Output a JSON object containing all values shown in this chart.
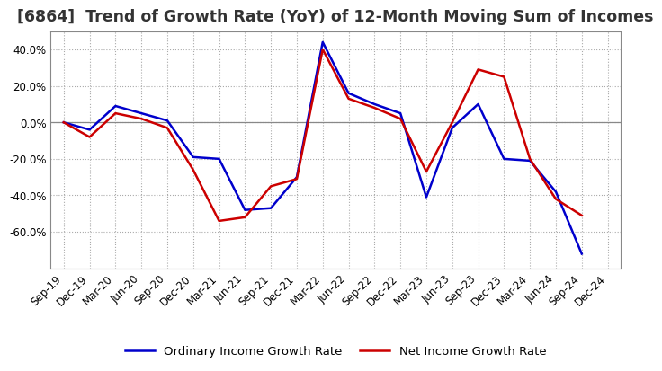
{
  "title": "[6864]  Trend of Growth Rate (YoY) of 12-Month Moving Sum of Incomes",
  "x_labels": [
    "Sep-19",
    "Dec-19",
    "Mar-20",
    "Jun-20",
    "Sep-20",
    "Dec-20",
    "Mar-21",
    "Jun-21",
    "Sep-21",
    "Dec-21",
    "Mar-22",
    "Jun-22",
    "Sep-22",
    "Dec-22",
    "Mar-23",
    "Jun-23",
    "Sep-23",
    "Dec-23",
    "Mar-24",
    "Jun-24",
    "Sep-24",
    "Dec-24"
  ],
  "ordinary_income": [
    0.0,
    -4.0,
    9.0,
    5.0,
    1.0,
    -19.0,
    -20.0,
    -48.0,
    -47.0,
    -30.0,
    44.0,
    16.0,
    10.0,
    5.0,
    -41.0,
    -3.0,
    10.0,
    -20.0,
    -21.0,
    -38.0,
    -72.0,
    null
  ],
  "net_income": [
    0.0,
    -8.0,
    5.0,
    2.0,
    -3.0,
    -26.0,
    -54.0,
    -52.0,
    -35.0,
    -31.0,
    40.0,
    13.0,
    8.0,
    2.0,
    -27.0,
    0.0,
    29.0,
    25.0,
    -20.0,
    -42.0,
    -51.0,
    null
  ],
  "ordinary_color": "#0000cc",
  "net_color": "#cc0000",
  "ylim_min": -80,
  "ylim_max": 50,
  "yticks": [
    -60.0,
    -40.0,
    -20.0,
    0.0,
    20.0,
    40.0
  ],
  "background_color": "#ffffff",
  "grid_color": "#aaaaaa",
  "title_fontsize": 12.5,
  "tick_fontsize": 8.5,
  "legend_fontsize": 9.5
}
